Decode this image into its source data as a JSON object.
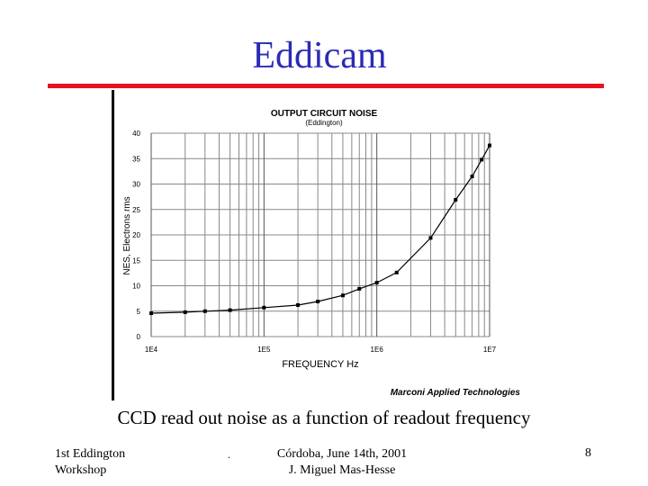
{
  "slide": {
    "title": "Eddicam",
    "caption": "CCD read out noise as a function of readout frequency",
    "footer_left_line1": "1st Eddington",
    "footer_left_line2": "Workshop",
    "footer_dot": ".",
    "footer_center_line1": "Córdoba,  June 14th, 2001",
    "footer_center_line2": "J. Miguel Mas-Hesse",
    "page_number": "8"
  },
  "colors": {
    "title": "#2b2bb5",
    "rule": "#e8121d",
    "series": "#000000",
    "grid": "#888888"
  },
  "chart_data": {
    "type": "line",
    "title": "OUTPUT CIRCUIT NOISE",
    "subtitle": "(Eddington)",
    "xlabel": "FREQUENCY  Hz",
    "ylabel": "NES, Electrons rms",
    "credit": "Marconi Applied Technologies",
    "x_scale": "log",
    "xlim": [
      10000,
      10000000
    ],
    "ylim": [
      0,
      40
    ],
    "x_ticks": [
      10000,
      100000,
      1000000,
      10000000
    ],
    "x_tick_labels": [
      "1E4",
      "1E5",
      "1E6",
      "1E7"
    ],
    "y_ticks": [
      0,
      5,
      10,
      15,
      20,
      25,
      30,
      35,
      40
    ],
    "y_tick_labels": [
      "0",
      "5",
      "10",
      "15",
      "20",
      "25",
      "30",
      "35",
      "40"
    ],
    "grid": true,
    "series": [
      {
        "x": [
          10000,
          20000,
          30000,
          50000,
          100000,
          200000,
          300000,
          500000,
          700000,
          1000000,
          1500000,
          3000000,
          5000000,
          7000000,
          8500000,
          10000000
        ],
        "y": [
          4.6,
          4.8,
          5.0,
          5.2,
          5.7,
          6.2,
          6.9,
          8.1,
          9.4,
          10.6,
          12.6,
          19.4,
          26.9,
          31.5,
          34.8,
          37.6
        ]
      }
    ]
  }
}
